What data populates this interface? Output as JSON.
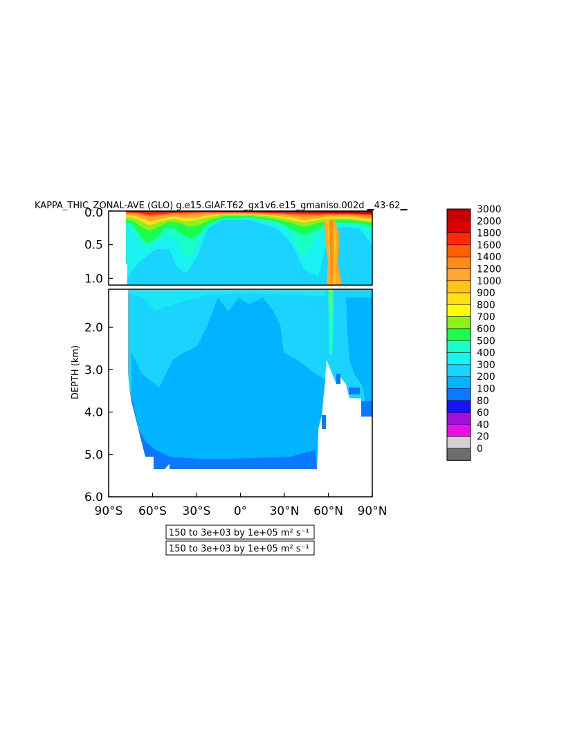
{
  "title": "KAPPA_THIC_ZONAL-AVE (GLO) g.e15.GIAF.T62_gx1v6.e15_gmaniso.002d ▁43-62▁",
  "chart_data": {
    "type": "heatmap",
    "title": "KAPPA_THIC_ZONAL-AVE (GLO) g.e15.GIAF.T62_gx1v6.e15_gmaniso.002d ▁43-62▁",
    "ylabel": "DEPTH (km)",
    "xlabel": "",
    "x_ticks": [
      {
        "value": -90,
        "label": "90°S"
      },
      {
        "value": -60,
        "label": "60°S"
      },
      {
        "value": -30,
        "label": "30°S"
      },
      {
        "value": 0,
        "label": "0°"
      },
      {
        "value": 30,
        "label": "30°N"
      },
      {
        "value": 60,
        "label": "60°N"
      },
      {
        "value": 90,
        "label": "90°N"
      }
    ],
    "upper_y_ticks": [
      {
        "value": 0.0,
        "label": "0.0"
      },
      {
        "value": 0.5,
        "label": "0.5"
      },
      {
        "value": 1.0,
        "label": "1.0"
      }
    ],
    "lower_y_ticks": [
      {
        "value": 2.0,
        "label": "2.0"
      },
      {
        "value": 3.0,
        "label": "3.0"
      },
      {
        "value": 4.0,
        "label": "4.0"
      },
      {
        "value": 5.0,
        "label": "5.0"
      },
      {
        "value": 6.0,
        "label": "6.0"
      }
    ],
    "xlim": [
      -90,
      90
    ],
    "upper_ylim": [
      0.0,
      1.1
    ],
    "lower_ylim": [
      1.1,
      6.0
    ],
    "colorbar": {
      "levels": [
        "3000",
        "2000",
        "1800",
        "1600",
        "1400",
        "1200",
        "1000",
        "900",
        "800",
        "700",
        "600",
        "500",
        "400",
        "300",
        "200",
        "100",
        "80",
        "60",
        "40",
        "20",
        "0"
      ],
      "colors": [
        "#c40000",
        "#e00000",
        "#ff2a00",
        "#ff5f00",
        "#ff8c1a",
        "#ffa733",
        "#ffc21a",
        "#ffe01a",
        "#ffff00",
        "#8cf21a",
        "#1aff4d",
        "#1affc8",
        "#1af2f2",
        "#1ad4ff",
        "#00b4ff",
        "#0a78ff",
        "#1414ff",
        "#a010d8",
        "#e410e4",
        "#d2d2d2",
        "#6e6e6e"
      ]
    },
    "contour_labels": [
      "150 to 3e+03 by 1e+05 m² s⁻¹",
      "150 to 3e+03 by 1e+05 m² s⁻¹"
    ]
  }
}
